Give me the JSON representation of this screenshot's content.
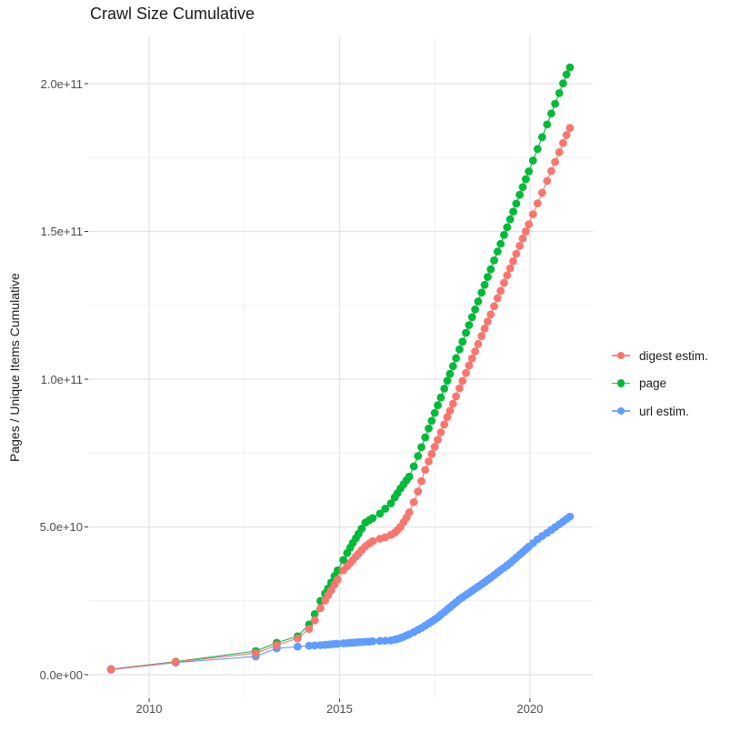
{
  "title": "Crawl Size Cumulative",
  "axes": {
    "y_label": "Pages / Unique Items Cumulative"
  },
  "chart_data": {
    "type": "line",
    "title": "Crawl Size Cumulative",
    "xlabel": "",
    "ylabel": "Pages / Unique Items Cumulative",
    "x_unit": "year",
    "y_unit": "items, values given in billions (1e9)",
    "xlim": [
      2008.4,
      2021.65
    ],
    "ylim_e9": [
      -8,
      216
    ],
    "x_major_ticks": [
      2010,
      2015,
      2020
    ],
    "x_tick_labels": [
      "2010",
      "2015",
      "2020"
    ],
    "x_minor_gridlines": [
      2012.5,
      2017.5
    ],
    "y_major_ticks_e9": [
      0,
      50,
      100,
      150,
      200
    ],
    "y_tick_labels": [
      "0.0e+00",
      "5.0e+10",
      "1.0e+11",
      "1.5e+11",
      "2.0e+11"
    ],
    "y_minor_gridlines_e9": [
      25,
      75,
      125,
      175
    ],
    "grid": "major and minor, light gray on white",
    "legend_position": "right",
    "colors": {
      "digest_estim": "#F8766D",
      "page": "#00BA38",
      "url_estim": "#619CFF",
      "gridline_major": "#E4E4E4",
      "gridline_minor": "#F0F0F0",
      "tick": "#333333",
      "text": "#4d4d4d"
    },
    "series": [
      {
        "name": "digest estim.",
        "color": "#F8766D",
        "points": [
          [
            2009.0,
            1.8
          ],
          [
            2010.7,
            4.3
          ],
          [
            2012.8,
            7.3
          ],
          [
            2013.35,
            10.0
          ],
          [
            2013.9,
            12.3
          ],
          [
            2014.2,
            15.5
          ],
          [
            2014.35,
            18.4
          ],
          [
            2014.5,
            22.5
          ],
          [
            2014.62,
            25.1
          ],
          [
            2014.7,
            26.9
          ],
          [
            2014.78,
            28.6
          ],
          [
            2014.87,
            30.5
          ],
          [
            2014.95,
            32.2
          ],
          [
            2015.1,
            35.3
          ],
          [
            2015.2,
            36.7
          ],
          [
            2015.28,
            37.8
          ],
          [
            2015.35,
            38.8
          ],
          [
            2015.43,
            40.0
          ],
          [
            2015.5,
            41.0
          ],
          [
            2015.58,
            42.2
          ],
          [
            2015.68,
            43.4
          ],
          [
            2015.78,
            44.4
          ],
          [
            2015.87,
            45.2
          ],
          [
            2016.06,
            46.0
          ],
          [
            2016.2,
            46.5
          ],
          [
            2016.35,
            47.3
          ],
          [
            2016.45,
            48.0
          ],
          [
            2016.52,
            48.9
          ],
          [
            2016.6,
            50.0
          ],
          [
            2016.68,
            51.6
          ],
          [
            2016.76,
            53.2
          ],
          [
            2016.83,
            54.9
          ],
          [
            2016.95,
            58.4
          ],
          [
            2017.06,
            62.0
          ],
          [
            2017.15,
            65.5
          ],
          [
            2017.25,
            69.3
          ],
          [
            2017.34,
            72.2
          ],
          [
            2017.42,
            74.7
          ],
          [
            2017.5,
            77.1
          ],
          [
            2017.58,
            79.5
          ],
          [
            2017.66,
            82.0
          ],
          [
            2017.75,
            84.7
          ],
          [
            2017.83,
            87.2
          ],
          [
            2017.9,
            89.3
          ],
          [
            2017.98,
            91.7
          ],
          [
            2018.06,
            94.2
          ],
          [
            2018.15,
            96.9
          ],
          [
            2018.23,
            99.4
          ],
          [
            2018.32,
            102.1
          ],
          [
            2018.4,
            104.6
          ],
          [
            2018.48,
            107.0
          ],
          [
            2018.56,
            109.4
          ],
          [
            2018.64,
            111.9
          ],
          [
            2018.73,
            114.6
          ],
          [
            2018.81,
            117.1
          ],
          [
            2018.89,
            119.5
          ],
          [
            2018.97,
            121.9
          ],
          [
            2019.06,
            124.7
          ],
          [
            2019.15,
            127.4
          ],
          [
            2019.23,
            129.9
          ],
          [
            2019.32,
            132.6
          ],
          [
            2019.4,
            135.1
          ],
          [
            2019.48,
            137.5
          ],
          [
            2019.56,
            139.9
          ],
          [
            2019.64,
            142.4
          ],
          [
            2019.73,
            145.1
          ],
          [
            2019.81,
            147.6
          ],
          [
            2019.89,
            150.0
          ],
          [
            2019.97,
            152.4
          ],
          [
            2020.08,
            155.8
          ],
          [
            2020.2,
            159.5
          ],
          [
            2020.32,
            163.1
          ],
          [
            2020.45,
            167.1
          ],
          [
            2020.56,
            170.4
          ],
          [
            2020.66,
            173.5
          ],
          [
            2020.77,
            176.8
          ],
          [
            2020.87,
            179.9
          ],
          [
            2020.96,
            182.6
          ],
          [
            2021.05,
            185.0
          ]
        ]
      },
      {
        "name": "page",
        "color": "#00BA38",
        "points": [
          [
            2009.0,
            1.9
          ],
          [
            2010.7,
            4.4
          ],
          [
            2012.8,
            8.0
          ],
          [
            2013.35,
            10.8
          ],
          [
            2013.9,
            13.0
          ],
          [
            2014.2,
            17.0
          ],
          [
            2014.35,
            20.5
          ],
          [
            2014.5,
            25.0
          ],
          [
            2014.62,
            27.5
          ],
          [
            2014.7,
            29.2
          ],
          [
            2014.78,
            31.2
          ],
          [
            2014.87,
            33.4
          ],
          [
            2014.95,
            35.3
          ],
          [
            2015.1,
            38.8
          ],
          [
            2015.2,
            41.2
          ],
          [
            2015.28,
            43.0
          ],
          [
            2015.35,
            44.6
          ],
          [
            2015.43,
            46.2
          ],
          [
            2015.5,
            47.7
          ],
          [
            2015.58,
            49.4
          ],
          [
            2015.68,
            51.5
          ],
          [
            2015.78,
            52.3
          ],
          [
            2015.87,
            53.0
          ],
          [
            2016.06,
            54.5
          ],
          [
            2016.2,
            56.2
          ],
          [
            2016.35,
            58.0
          ],
          [
            2016.45,
            60.0
          ],
          [
            2016.52,
            61.4
          ],
          [
            2016.6,
            63.0
          ],
          [
            2016.68,
            64.4
          ],
          [
            2016.76,
            65.8
          ],
          [
            2016.83,
            67.0
          ],
          [
            2016.95,
            70.5
          ],
          [
            2017.06,
            74.0
          ],
          [
            2017.15,
            77.0
          ],
          [
            2017.25,
            80.3
          ],
          [
            2017.34,
            83.3
          ],
          [
            2017.42,
            85.9
          ],
          [
            2017.5,
            88.6
          ],
          [
            2017.58,
            91.2
          ],
          [
            2017.66,
            93.8
          ],
          [
            2017.75,
            96.8
          ],
          [
            2017.83,
            99.5
          ],
          [
            2017.9,
            101.8
          ],
          [
            2017.98,
            104.4
          ],
          [
            2018.06,
            107.1
          ],
          [
            2018.15,
            110.1
          ],
          [
            2018.23,
            112.7
          ],
          [
            2018.32,
            115.7
          ],
          [
            2018.4,
            118.3
          ],
          [
            2018.48,
            121.0
          ],
          [
            2018.56,
            123.6
          ],
          [
            2018.64,
            126.3
          ],
          [
            2018.73,
            129.3
          ],
          [
            2018.81,
            131.9
          ],
          [
            2018.89,
            134.6
          ],
          [
            2018.97,
            137.2
          ],
          [
            2019.06,
            140.2
          ],
          [
            2019.15,
            143.2
          ],
          [
            2019.23,
            145.8
          ],
          [
            2019.32,
            148.8
          ],
          [
            2019.4,
            151.4
          ],
          [
            2019.48,
            154.1
          ],
          [
            2019.56,
            156.7
          ],
          [
            2019.64,
            159.4
          ],
          [
            2019.73,
            162.4
          ],
          [
            2019.81,
            165.0
          ],
          [
            2019.89,
            167.7
          ],
          [
            2019.97,
            170.3
          ],
          [
            2020.08,
            174.0
          ],
          [
            2020.2,
            177.9
          ],
          [
            2020.32,
            181.9
          ],
          [
            2020.45,
            186.2
          ],
          [
            2020.56,
            189.9
          ],
          [
            2020.66,
            193.2
          ],
          [
            2020.77,
            196.8
          ],
          [
            2020.87,
            200.1
          ],
          [
            2020.96,
            203.1
          ],
          [
            2021.05,
            205.5
          ]
        ]
      },
      {
        "name": "url estim.",
        "color": "#619CFF",
        "points": [
          [
            2009.0,
            1.7
          ],
          [
            2010.7,
            4.1
          ],
          [
            2012.8,
            6.2
          ],
          [
            2013.35,
            8.9
          ],
          [
            2013.9,
            9.5
          ],
          [
            2014.2,
            9.8
          ],
          [
            2014.35,
            9.9
          ],
          [
            2014.5,
            10.0
          ],
          [
            2014.62,
            10.1
          ],
          [
            2014.7,
            10.2
          ],
          [
            2014.78,
            10.3
          ],
          [
            2014.87,
            10.4
          ],
          [
            2014.95,
            10.45
          ],
          [
            2015.1,
            10.6
          ],
          [
            2015.2,
            10.7
          ],
          [
            2015.28,
            10.8
          ],
          [
            2015.35,
            10.85
          ],
          [
            2015.43,
            10.9
          ],
          [
            2015.5,
            11.0
          ],
          [
            2015.58,
            11.05
          ],
          [
            2015.68,
            11.15
          ],
          [
            2015.78,
            11.2
          ],
          [
            2015.87,
            11.3
          ],
          [
            2016.06,
            11.4
          ],
          [
            2016.2,
            11.5
          ],
          [
            2016.35,
            11.6
          ],
          [
            2016.45,
            11.9
          ],
          [
            2016.52,
            12.1
          ],
          [
            2016.6,
            12.4
          ],
          [
            2016.68,
            12.8
          ],
          [
            2016.76,
            13.3
          ],
          [
            2016.83,
            13.7
          ],
          [
            2016.95,
            14.4
          ],
          [
            2017.06,
            15.2
          ],
          [
            2017.15,
            15.8
          ],
          [
            2017.25,
            16.6
          ],
          [
            2017.34,
            17.3
          ],
          [
            2017.42,
            18.0
          ],
          [
            2017.5,
            18.7
          ],
          [
            2017.58,
            19.4
          ],
          [
            2017.66,
            20.3
          ],
          [
            2017.75,
            21.2
          ],
          [
            2017.83,
            22.1
          ],
          [
            2017.9,
            22.8
          ],
          [
            2017.98,
            23.7
          ],
          [
            2018.06,
            24.5
          ],
          [
            2018.15,
            25.5
          ],
          [
            2018.23,
            26.2
          ],
          [
            2018.32,
            27.0
          ],
          [
            2018.4,
            27.7
          ],
          [
            2018.48,
            28.4
          ],
          [
            2018.56,
            29.1
          ],
          [
            2018.64,
            29.8
          ],
          [
            2018.73,
            30.6
          ],
          [
            2018.81,
            31.3
          ],
          [
            2018.89,
            32.1
          ],
          [
            2018.97,
            32.8
          ],
          [
            2019.06,
            33.7
          ],
          [
            2019.15,
            34.6
          ],
          [
            2019.23,
            35.4
          ],
          [
            2019.32,
            36.2
          ],
          [
            2019.4,
            37.0
          ],
          [
            2019.48,
            37.8
          ],
          [
            2019.56,
            38.7
          ],
          [
            2019.64,
            39.6
          ],
          [
            2019.73,
            40.6
          ],
          [
            2019.81,
            41.5
          ],
          [
            2019.89,
            42.4
          ],
          [
            2019.97,
            43.3
          ],
          [
            2020.08,
            44.5
          ],
          [
            2020.2,
            45.8
          ],
          [
            2020.32,
            46.9
          ],
          [
            2020.45,
            48.0
          ],
          [
            2020.56,
            49.0
          ],
          [
            2020.66,
            49.9
          ],
          [
            2020.77,
            50.9
          ],
          [
            2020.87,
            51.8
          ],
          [
            2020.96,
            52.7
          ],
          [
            2021.05,
            53.5
          ]
        ]
      }
    ]
  }
}
